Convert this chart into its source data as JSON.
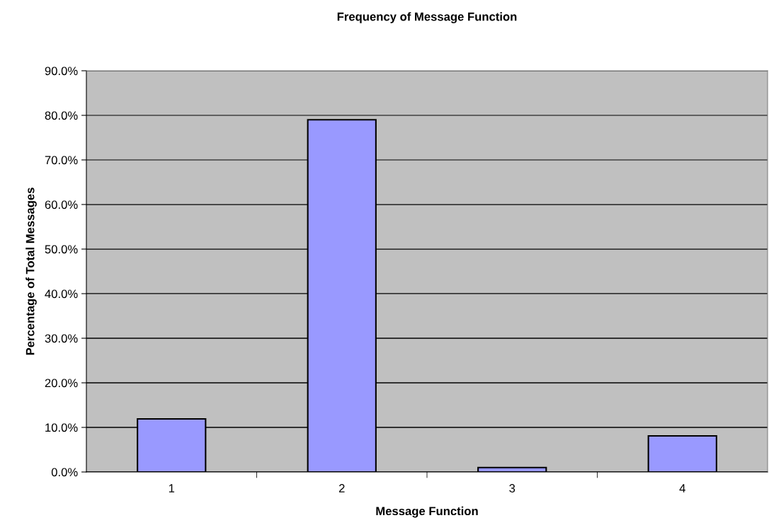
{
  "chart_data": {
    "type": "bar",
    "title": "Frequency of Message Function",
    "xlabel": "Message Function",
    "ylabel": "Percentage of Total Messages",
    "categories": [
      "1",
      "2",
      "3",
      "4"
    ],
    "values": [
      11.9,
      79.0,
      1.0,
      8.1
    ],
    "color": "#9999ff",
    "ylim": [
      0,
      90
    ],
    "yticks": [
      {
        "value": 0,
        "label": "0.0%"
      },
      {
        "value": 10,
        "label": "10.0%"
      },
      {
        "value": 20,
        "label": "20.0%"
      },
      {
        "value": 30,
        "label": "30.0%"
      },
      {
        "value": 40,
        "label": "40.0%"
      },
      {
        "value": 50,
        "label": "50.0%"
      },
      {
        "value": 60,
        "label": "60.0%"
      },
      {
        "value": 70,
        "label": "70.0%"
      },
      {
        "value": 80,
        "label": "80.0%"
      },
      {
        "value": 90,
        "label": "90.0%"
      }
    ],
    "grid": "y"
  }
}
